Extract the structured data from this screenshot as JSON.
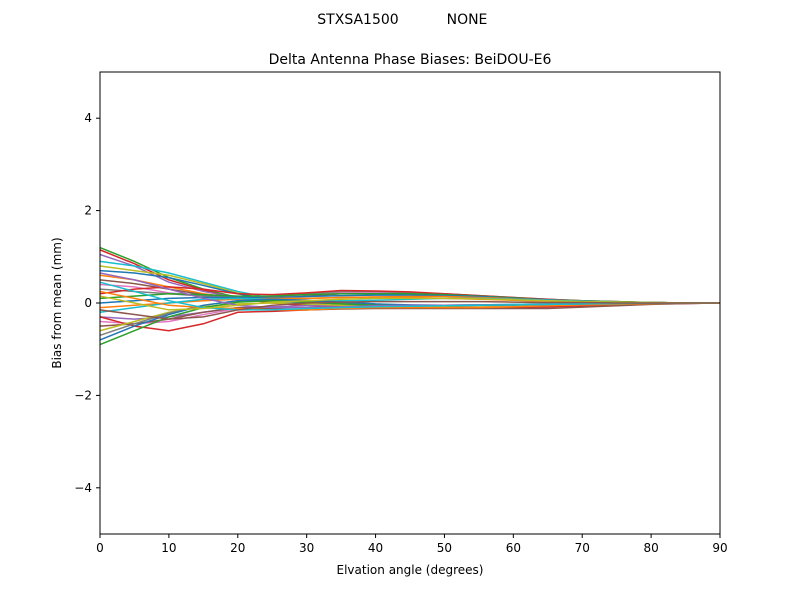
{
  "figure": {
    "suptitle_left": "STXSA1500",
    "suptitle_right": "NONE"
  },
  "chart_data": {
    "type": "line",
    "title": "Delta Antenna Phase Biases: BeiDOU-E6",
    "xlabel": "Elvation angle (degrees)",
    "ylabel": "Bias from mean (mm)",
    "xlim": [
      0,
      90
    ],
    "ylim": [
      -5,
      5
    ],
    "xticks": [
      0,
      10,
      20,
      30,
      40,
      50,
      60,
      70,
      80,
      90
    ],
    "yticks": [
      -4,
      -2,
      0,
      2,
      4
    ],
    "grid": false,
    "legend": "none",
    "x": [
      0,
      5,
      10,
      15,
      20,
      25,
      30,
      35,
      40,
      45,
      50,
      55,
      60,
      65,
      70,
      75,
      80,
      85,
      90
    ],
    "series": [
      {
        "color": "#2ca02c",
        "values": [
          1.2,
          0.9,
          0.55,
          0.3,
          0.12,
          0.02,
          -0.05,
          -0.08,
          -0.08,
          -0.07,
          -0.06,
          -0.05,
          -0.04,
          -0.03,
          -0.02,
          -0.01,
          0.0,
          0.0,
          0.0
        ]
      },
      {
        "color": "#d62728",
        "values": [
          1.15,
          0.85,
          0.5,
          0.28,
          0.1,
          0.0,
          -0.06,
          -0.09,
          -0.09,
          -0.08,
          -0.07,
          -0.06,
          -0.05,
          -0.04,
          -0.03,
          -0.02,
          -0.01,
          0.0,
          0.0
        ]
      },
      {
        "color": "#9467bd",
        "values": [
          1.05,
          0.8,
          0.45,
          0.25,
          0.12,
          0.05,
          0.0,
          -0.04,
          -0.06,
          -0.06,
          -0.05,
          -0.04,
          -0.03,
          -0.02,
          -0.02,
          -0.01,
          0.0,
          0.0,
          0.0
        ]
      },
      {
        "color": "#17becf",
        "values": [
          0.9,
          0.8,
          0.65,
          0.45,
          0.25,
          0.1,
          0.02,
          -0.03,
          -0.05,
          -0.06,
          -0.05,
          -0.04,
          -0.03,
          -0.02,
          -0.02,
          -0.01,
          0.0,
          0.0,
          0.0
        ]
      },
      {
        "color": "#bcbd22",
        "values": [
          0.8,
          0.7,
          0.6,
          0.42,
          0.22,
          0.08,
          0.0,
          -0.05,
          -0.07,
          -0.07,
          -0.06,
          -0.05,
          -0.04,
          -0.03,
          -0.02,
          -0.01,
          0.0,
          0.0,
          0.0
        ]
      },
      {
        "color": "#1f77b4",
        "values": [
          0.7,
          0.65,
          0.55,
          0.38,
          0.2,
          0.07,
          0.0,
          -0.05,
          -0.07,
          -0.07,
          -0.06,
          -0.05,
          -0.04,
          -0.03,
          -0.02,
          -0.01,
          0.0,
          0.0,
          0.0
        ]
      },
      {
        "color": "#ff7f0e",
        "values": [
          0.6,
          0.5,
          0.35,
          0.2,
          0.1,
          0.08,
          0.1,
          0.12,
          0.13,
          0.12,
          0.1,
          0.08,
          0.06,
          0.04,
          0.03,
          0.02,
          0.01,
          0.0,
          0.0
        ]
      },
      {
        "color": "#8c564b",
        "values": [
          0.5,
          0.42,
          0.3,
          0.18,
          0.1,
          0.12,
          0.15,
          0.2,
          0.2,
          0.18,
          0.15,
          0.12,
          0.09,
          0.06,
          0.04,
          0.02,
          0.01,
          0.0,
          0.0
        ]
      },
      {
        "color": "#e377c2",
        "values": [
          0.4,
          0.35,
          0.22,
          0.15,
          0.1,
          0.12,
          0.18,
          0.22,
          0.22,
          0.2,
          0.17,
          0.14,
          0.1,
          0.07,
          0.04,
          0.02,
          0.01,
          0.0,
          0.0
        ]
      },
      {
        "color": "#7f7f7f",
        "values": [
          0.3,
          0.25,
          0.2,
          0.15,
          0.12,
          0.15,
          0.2,
          0.25,
          0.25,
          0.22,
          0.2,
          0.16,
          0.12,
          0.08,
          0.05,
          0.03,
          0.01,
          0.0,
          0.0
        ]
      },
      {
        "color": "#d62728",
        "values": [
          0.2,
          0.3,
          0.35,
          0.3,
          0.2,
          0.18,
          0.22,
          0.27,
          0.26,
          0.24,
          0.2,
          0.16,
          0.12,
          0.08,
          0.05,
          0.03,
          0.01,
          0.0,
          0.0
        ]
      },
      {
        "color": "#2ca02c",
        "values": [
          0.1,
          0.15,
          0.2,
          0.18,
          0.15,
          0.15,
          0.18,
          0.2,
          0.2,
          0.2,
          0.18,
          0.15,
          0.11,
          0.07,
          0.05,
          0.03,
          0.01,
          0.0,
          0.0
        ]
      },
      {
        "color": "#1f77b4",
        "values": [
          0.0,
          0.05,
          0.1,
          0.12,
          0.12,
          0.12,
          0.14,
          0.16,
          0.17,
          0.17,
          0.16,
          0.14,
          0.1,
          0.07,
          0.04,
          0.02,
          0.01,
          0.0,
          0.0
        ]
      },
      {
        "color": "#ff7f0e",
        "values": [
          -0.1,
          -0.05,
          0.0,
          0.05,
          0.08,
          0.1,
          0.1,
          0.12,
          0.13,
          0.14,
          0.14,
          0.12,
          0.09,
          0.06,
          0.04,
          0.02,
          0.01,
          0.0,
          0.0
        ]
      },
      {
        "color": "#17becf",
        "values": [
          -0.2,
          -0.1,
          0.0,
          0.08,
          0.1,
          0.08,
          0.05,
          0.05,
          0.06,
          0.08,
          0.1,
          0.1,
          0.08,
          0.06,
          0.04,
          0.02,
          0.01,
          0.0,
          0.0
        ]
      },
      {
        "color": "#9467bd",
        "values": [
          -0.3,
          -0.35,
          -0.3,
          -0.2,
          -0.1,
          -0.08,
          -0.06,
          -0.05,
          -0.05,
          -0.05,
          -0.05,
          -0.05,
          -0.05,
          -0.04,
          -0.03,
          -0.02,
          -0.01,
          0.0,
          0.0
        ]
      },
      {
        "color": "#e377c2",
        "values": [
          -0.4,
          -0.45,
          -0.4,
          -0.25,
          -0.12,
          -0.15,
          -0.15,
          -0.12,
          -0.1,
          -0.1,
          -0.1,
          -0.1,
          -0.1,
          -0.1,
          -0.08,
          -0.05,
          -0.02,
          -0.01,
          0.0
        ]
      },
      {
        "color": "#d62728",
        "values": [
          -0.3,
          -0.5,
          -0.6,
          -0.45,
          -0.2,
          -0.18,
          -0.15,
          -0.12,
          -0.1,
          -0.1,
          -0.1,
          -0.1,
          -0.1,
          -0.08,
          -0.06,
          -0.04,
          -0.02,
          -0.01,
          0.0
        ]
      },
      {
        "color": "#8c564b",
        "values": [
          -0.5,
          -0.45,
          -0.35,
          -0.2,
          -0.1,
          -0.12,
          -0.15,
          -0.13,
          -0.12,
          -0.12,
          -0.12,
          -0.12,
          -0.12,
          -0.12,
          -0.09,
          -0.06,
          -0.03,
          -0.01,
          0.0
        ]
      },
      {
        "color": "#bcbd22",
        "values": [
          -0.6,
          -0.4,
          -0.2,
          -0.08,
          -0.02,
          0.0,
          -0.02,
          -0.05,
          -0.06,
          -0.07,
          -0.07,
          -0.06,
          -0.05,
          -0.04,
          -0.03,
          -0.02,
          -0.01,
          0.0,
          0.0
        ]
      },
      {
        "color": "#7f7f7f",
        "values": [
          -0.7,
          -0.45,
          -0.22,
          -0.05,
          0.05,
          0.08,
          0.05,
          0.0,
          -0.03,
          -0.05,
          -0.06,
          -0.05,
          -0.04,
          -0.03,
          -0.02,
          -0.01,
          0.0,
          0.0,
          0.0
        ]
      },
      {
        "color": "#1f77b4",
        "values": [
          -0.8,
          -0.5,
          -0.25,
          -0.05,
          0.05,
          0.08,
          0.06,
          0.02,
          -0.02,
          -0.04,
          -0.05,
          -0.05,
          -0.04,
          -0.03,
          -0.02,
          -0.01,
          0.0,
          0.0,
          0.0
        ]
      },
      {
        "color": "#ff7f0e",
        "values": [
          0.25,
          0.1,
          -0.05,
          -0.1,
          -0.12,
          -0.15,
          -0.15,
          -0.12,
          -0.1,
          -0.1,
          -0.1,
          -0.1,
          -0.08,
          -0.06,
          -0.04,
          -0.03,
          -0.01,
          0.0,
          0.0
        ]
      },
      {
        "color": "#2ca02c",
        "values": [
          -0.9,
          -0.6,
          -0.3,
          -0.1,
          0.02,
          0.05,
          0.02,
          -0.02,
          -0.05,
          -0.06,
          -0.06,
          -0.05,
          -0.04,
          -0.03,
          -0.02,
          -0.01,
          0.0,
          0.0,
          0.0
        ]
      },
      {
        "color": "#9467bd",
        "values": [
          0.65,
          0.5,
          0.3,
          0.1,
          -0.05,
          -0.1,
          -0.1,
          -0.08,
          -0.06,
          -0.05,
          -0.05,
          -0.04,
          -0.04,
          -0.03,
          -0.02,
          -0.01,
          0.0,
          0.0,
          0.0
        ]
      },
      {
        "color": "#17becf",
        "values": [
          0.45,
          0.25,
          0.05,
          -0.1,
          -0.15,
          -0.15,
          -0.12,
          -0.1,
          -0.08,
          -0.07,
          -0.06,
          -0.05,
          -0.04,
          -0.03,
          -0.02,
          -0.01,
          0.0,
          0.0,
          0.0
        ]
      },
      {
        "color": "#bcbd22",
        "values": [
          0.15,
          0.0,
          -0.15,
          -0.12,
          -0.05,
          0.02,
          0.05,
          0.08,
          0.1,
          0.1,
          0.1,
          0.09,
          0.07,
          0.05,
          0.03,
          0.02,
          0.01,
          0.0,
          0.0
        ]
      },
      {
        "color": "#8c564b",
        "values": [
          -0.15,
          -0.25,
          -0.35,
          -0.3,
          -0.15,
          -0.05,
          0.0,
          0.02,
          0.03,
          0.03,
          0.03,
          0.03,
          0.02,
          0.01,
          0.01,
          0.0,
          0.0,
          0.0,
          0.0
        ]
      }
    ]
  }
}
